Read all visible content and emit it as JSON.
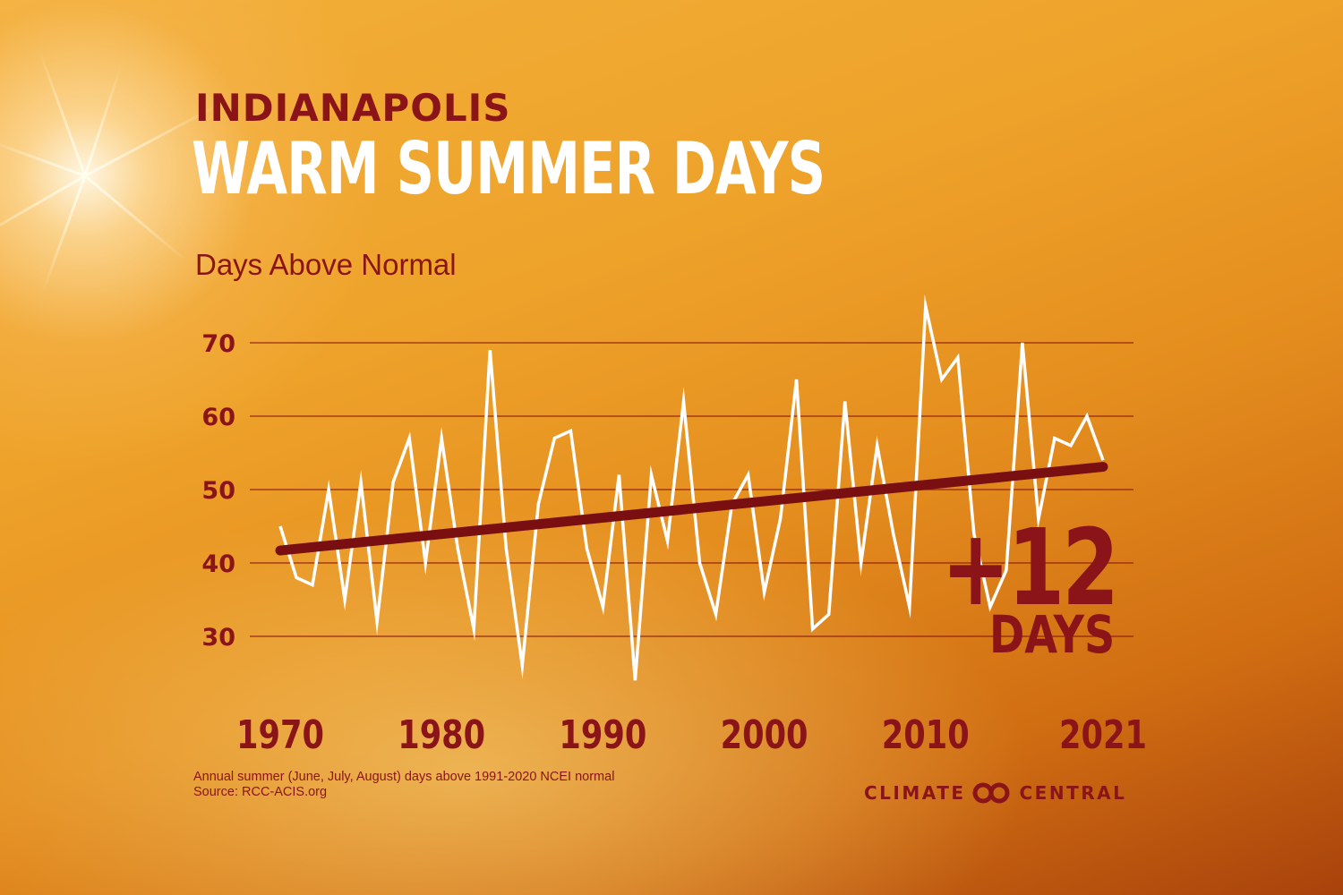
{
  "city": "INDIANAPOLIS",
  "headline": "WARM SUMMER DAYS",
  "callout": {
    "value": "+12",
    "unit": "DAYS"
  },
  "footnote": {
    "line1": "Annual summer (June, July, August) days above 1991-2020 NCEI normal",
    "line2": "Source: RCC-ACIS.org"
  },
  "logo": {
    "left_text": "CLIMATE",
    "right_text": "CENTRAL"
  },
  "colors": {
    "accent": "#8a1418",
    "line": "#ffffff",
    "trend": "#7a0f12"
  },
  "chart_data": {
    "type": "line",
    "title": "INDIANAPOLIS WARM SUMMER DAYS",
    "ylabel": "Days Above Normal",
    "ylim": [
      25,
      75
    ],
    "yticks": [
      30,
      40,
      50,
      60,
      70
    ],
    "x_tick_labels": [
      "1970",
      "1980",
      "1990",
      "2000",
      "2010",
      "2021"
    ],
    "grid": true,
    "series": [
      {
        "values": [
          [
            1970,
            45
          ],
          [
            1971,
            38
          ],
          [
            1972,
            37
          ],
          [
            1973,
            50
          ],
          [
            1974,
            35
          ],
          [
            1975,
            51
          ],
          [
            1976,
            32
          ],
          [
            1977,
            51
          ],
          [
            1978,
            57
          ],
          [
            1979,
            40
          ],
          [
            1980,
            57
          ],
          [
            1981,
            42
          ],
          [
            1982,
            31
          ],
          [
            1983,
            69
          ],
          [
            1984,
            42
          ],
          [
            1985,
            26
          ],
          [
            1986,
            48
          ],
          [
            1987,
            57
          ],
          [
            1988,
            58
          ],
          [
            1989,
            42
          ],
          [
            1990,
            34
          ],
          [
            1991,
            52
          ],
          [
            1992,
            24
          ],
          [
            1993,
            52
          ],
          [
            1994,
            43
          ],
          [
            1995,
            62
          ],
          [
            1996,
            40
          ],
          [
            1997,
            33
          ],
          [
            1998,
            48
          ],
          [
            1999,
            52
          ],
          [
            2000,
            36
          ],
          [
            2001,
            46
          ],
          [
            2002,
            65
          ],
          [
            2003,
            31
          ],
          [
            2004,
            33
          ],
          [
            2005,
            62
          ],
          [
            2006,
            40
          ],
          [
            2007,
            56
          ],
          [
            2008,
            44
          ],
          [
            2009,
            34
          ],
          [
            2010,
            75
          ],
          [
            2011,
            65
          ],
          [
            2012,
            68
          ],
          [
            2013,
            44
          ],
          [
            2014,
            34
          ],
          [
            2015,
            39
          ],
          [
            2016,
            70
          ],
          [
            2017,
            46
          ],
          [
            2018,
            57
          ],
          [
            2019,
            56
          ],
          [
            2020,
            60
          ],
          [
            2021,
            54
          ]
        ]
      }
    ],
    "trend": {
      "start": [
        1970,
        41.7
      ],
      "end": [
        2021,
        53.1
      ]
    }
  }
}
